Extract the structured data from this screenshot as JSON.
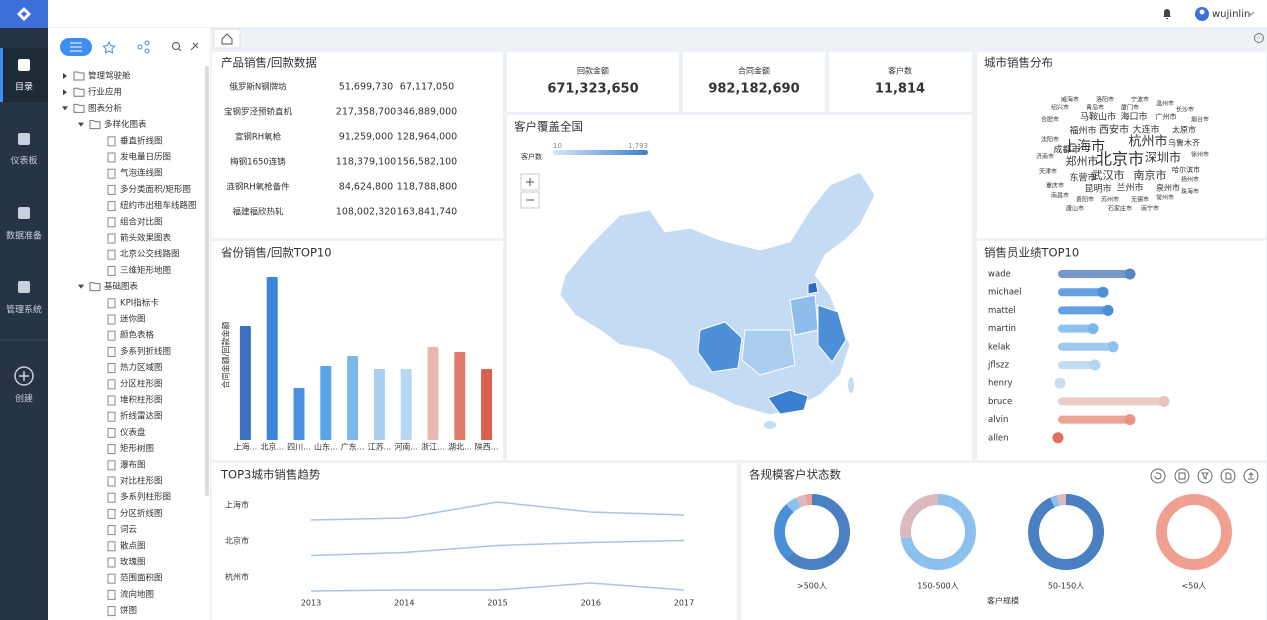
{
  "sidebar": {
    "menu": [
      "目录",
      "仪表板",
      "数据准备",
      "管理系统",
      "创建"
    ]
  },
  "topbar": {
    "user": "wujinlin"
  },
  "tree": [
    {
      "label": "管理驾驶舱"
    },
    {
      "label": "行业应用"
    },
    {
      "label": "图表分析",
      "children": [
        {
          "label": "多样化图表",
          "children": [
            {
              "label": "垂直折线图"
            },
            {
              "label": "发电量日历图"
            },
            {
              "label": "气泡连线图"
            },
            {
              "label": "多分类面积/矩形图"
            },
            {
              "label": "纽约市出租车线路图"
            },
            {
              "label": "组合对比图"
            },
            {
              "label": "箭头效果图表"
            },
            {
              "label": "北京公交线路图"
            },
            {
              "label": "三维矩形地图"
            }
          ]
        },
        {
          "label": "基础图表",
          "children": [
            {
              "label": "KPI指标卡"
            },
            {
              "label": "迷你图"
            },
            {
              "label": "颜色表格"
            },
            {
              "label": "多系列折线图"
            },
            {
              "label": "热力区域图"
            },
            {
              "label": "分区柱形图"
            },
            {
              "label": "堆积柱形图"
            },
            {
              "label": "折线雷达图"
            },
            {
              "label": "仪表盘"
            },
            {
              "label": "矩形树图"
            },
            {
              "label": "瀑布图"
            },
            {
              "label": "对比柱形图"
            },
            {
              "label": "多系列柱形图"
            },
            {
              "label": "分区折线图"
            },
            {
              "label": "词云"
            },
            {
              "label": "散点图"
            },
            {
              "label": "玫瑰图"
            },
            {
              "label": "范围面积图"
            },
            {
              "label": "流向地图"
            },
            {
              "label": "饼图"
            }
          ]
        }
      ]
    }
  ],
  "product_table": {
    "title": "产品销售/回款数据",
    "rows": [
      {
        "cells": [
          "俄罗斯N钢牌坊",
          "51,699,730",
          "67,117,050"
        ],
        "color": "#3d85c6"
      },
      {
        "cells": [
          "宝钢罗泾预轿直机",
          "217,358,700",
          "346,889,000"
        ],
        "color": "#e0524a"
      },
      {
        "cells": [
          "宣钢RH氧枪",
          "91,259,000",
          "128,964,000"
        ],
        "color": "#3d85c6"
      },
      {
        "cells": [
          "梅钢1650连铸",
          "118,379,100",
          "156,582,100"
        ],
        "color": "#3d85c6"
      },
      {
        "cells": [
          "涟钢RH氧枪备件",
          "84,624,800",
          "118,788,800"
        ],
        "color": "#3d85c6"
      },
      {
        "cells": [
          "福建福欣热轧",
          "108,002,320",
          "163,841,740"
        ],
        "color": "#3d85c6"
      }
    ]
  },
  "kpis": [
    {
      "label": "回款金额",
      "value": "671,323,650",
      "color": "#4a86c5"
    },
    {
      "label": "合同金额",
      "value": "982,182,690",
      "color": "#e0524a"
    },
    {
      "label": "客户数",
      "value": "11,814",
      "color": "#f07a5a"
    }
  ],
  "map": {
    "title": "客户覆盖全国",
    "legend_title": "客户数",
    "legend_min": "10",
    "legend_max": "1,793"
  },
  "wordcloud": {
    "title": "城市销售分布",
    "words": [
      "北京市",
      "上海市",
      "杭州市",
      "深圳市",
      "郑州市",
      "武汉市",
      "南京市",
      "西安市",
      "成都市",
      "大连市",
      "太原市",
      "马鞍山市",
      "海口市",
      "福州市",
      "东营市",
      "昆明市",
      "兰州市",
      "泉州市",
      "乌鲁木齐",
      "广州市",
      "哈尔滨市",
      "威海市",
      "洛阳市",
      "宁波市",
      "温州市",
      "绍兴市",
      "青岛市",
      "厦门市",
      "长沙市",
      "合肥市",
      "沈阳市",
      "济南市",
      "天津市",
      "重庆市",
      "南昌市",
      "贵阳市",
      "苏州市",
      "无锡市",
      "常州市",
      "扬州市",
      "徐州市",
      "烟台市",
      "唐山市",
      "石家庄市",
      "南宁市",
      "珠海市"
    ]
  },
  "chart_data": [
    {
      "type": "bar",
      "title": "省份销售/回款TOP10",
      "ylabel": "合同金额/回款金额",
      "categories": [
        "上海...",
        "北京...",
        "四川...",
        "山东...",
        "广东...",
        "江苏...",
        "河南...",
        "浙江...",
        "湖北...",
        "陕西..."
      ],
      "values": [
        114,
        163,
        52,
        74,
        84,
        71,
        71,
        93,
        88,
        71
      ],
      "colors": [
        "#3a72c0",
        "#3b86d8",
        "#4a90e0",
        "#5aa3e8",
        "#7ab8ec",
        "#a8cff0",
        "#b8d8f2",
        "#e8b8b0",
        "#e07a6a",
        "#d9604c"
      ],
      "ylim": [
        0,
        170
      ]
    },
    {
      "type": "lollipop",
      "title": "销售员业绩TOP10",
      "categories": [
        "wade",
        "michael",
        "mattel",
        "martin",
        "kelak",
        "jflszz",
        "henry",
        "bruce",
        "alvin",
        "allen"
      ],
      "values": [
        72,
        45,
        50,
        35,
        55,
        37,
        2,
        106,
        72,
        0
      ],
      "colors": [
        "#5b86c0",
        "#4a90d9",
        "#4a90d9",
        "#7ab8ec",
        "#8fc0ee",
        "#b5d5f0",
        "#c8def2",
        "#e8c4bc",
        "#e89484",
        "#e07060"
      ],
      "xlim": [
        0,
        110
      ]
    },
    {
      "type": "line",
      "title": "TOP3城市销售趋势",
      "x": [
        2013,
        2014,
        2015,
        2016,
        2017
      ],
      "series": [
        {
          "name": "上海市",
          "color": "#a9c4e8",
          "values": [
            0,
            1,
            9,
            4,
            2.5
          ]
        },
        {
          "name": "北京市",
          "color": "#a9c4e8",
          "values": [
            0,
            1.5,
            5,
            6.5,
            7.5
          ]
        },
        {
          "name": "杭州市",
          "color": "#a9c4e8",
          "values": [
            0,
            0.5,
            0.5,
            4,
            0.5
          ]
        }
      ]
    },
    {
      "type": "donut",
      "title": "各规模客户状态数",
      "xlabel": "客户规模",
      "categories": [
        ">500人",
        "150-500人",
        "50-150人",
        "<50人"
      ],
      "series": [
        {
          "color": "#4a7fc1",
          "values": [
            62,
            0,
            93,
            0
          ]
        },
        {
          "color": "#4a90d9",
          "values": [
            26,
            0,
            0,
            0
          ]
        },
        {
          "color": "#8cc1ee",
          "values": [
            5,
            72,
            3,
            0
          ]
        },
        {
          "color": "#dbb9bd",
          "values": [
            4,
            28,
            4,
            0
          ]
        },
        {
          "color": "#f0a090",
          "values": [
            3,
            0,
            0,
            100
          ]
        }
      ]
    }
  ]
}
